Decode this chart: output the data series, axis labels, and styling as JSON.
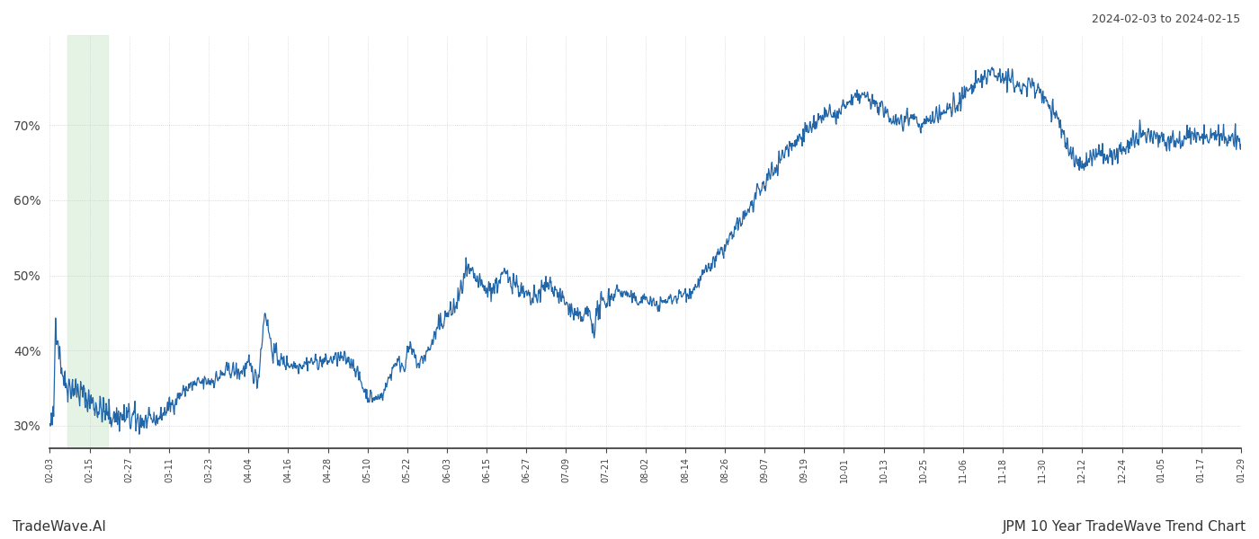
{
  "title_right": "2024-02-03 to 2024-02-15",
  "footer_left": "TradeWave.AI",
  "footer_right": "JPM 10 Year TradeWave Trend Chart",
  "line_color": "#2266aa",
  "highlight_color": "#d4ecd4",
  "highlight_alpha": 0.6,
  "ylim": [
    27,
    82
  ],
  "yticks": [
    30,
    40,
    50,
    60,
    70
  ],
  "background_color": "#ffffff",
  "grid_color": "#cccccc",
  "x_labels": [
    "02-03",
    "02-15",
    "02-27",
    "03-11",
    "03-23",
    "04-04",
    "04-16",
    "04-28",
    "05-10",
    "05-22",
    "06-03",
    "06-15",
    "06-27",
    "07-09",
    "07-21",
    "08-02",
    "08-14",
    "08-26",
    "09-07",
    "09-19",
    "10-01",
    "10-13",
    "10-25",
    "11-06",
    "11-18",
    "11-30",
    "12-12",
    "12-24",
    "01-05",
    "01-17",
    "01-29"
  ]
}
